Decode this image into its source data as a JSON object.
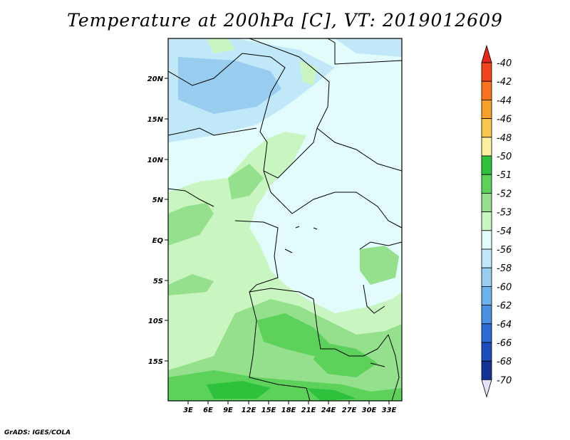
{
  "title": "Temperature at 200hPa [C], VT: 2019012609",
  "footer": "GrADS: IGES/COLA",
  "map": {
    "lat_labels": [
      "20N",
      "15N",
      "10N",
      "5N",
      "EQ",
      "5S",
      "10S",
      "15S"
    ],
    "lon_labels": [
      "3E",
      "6E",
      "9E",
      "12E",
      "15E",
      "18E",
      "21E",
      "24E",
      "27E",
      "30E",
      "33E"
    ]
  },
  "colorbar": {
    "labels": [
      "-40",
      "-42",
      "-44",
      "-46",
      "-48",
      "-50",
      "-51",
      "-52",
      "-53",
      "-54",
      "-56",
      "-58",
      "-60",
      "-62",
      "-64",
      "-66",
      "-68",
      "-70"
    ],
    "colors": {
      "top_arrow": "#e8261a",
      "bands": [
        "#f0441c",
        "#f8731c",
        "#f8a02a",
        "#f8c850",
        "#fbf0a0",
        "#2ec23c",
        "#5cd25a",
        "#94e08c",
        "#c8f5c0",
        "#e2fcfc",
        "#c0e8f8",
        "#98cdf0",
        "#6eb2ec",
        "#4a90e4",
        "#2c6cd8",
        "#1c4cbe",
        "#123296",
        "#0a1870"
      ],
      "bottom_arrow": "#e6e0f8"
    }
  }
}
